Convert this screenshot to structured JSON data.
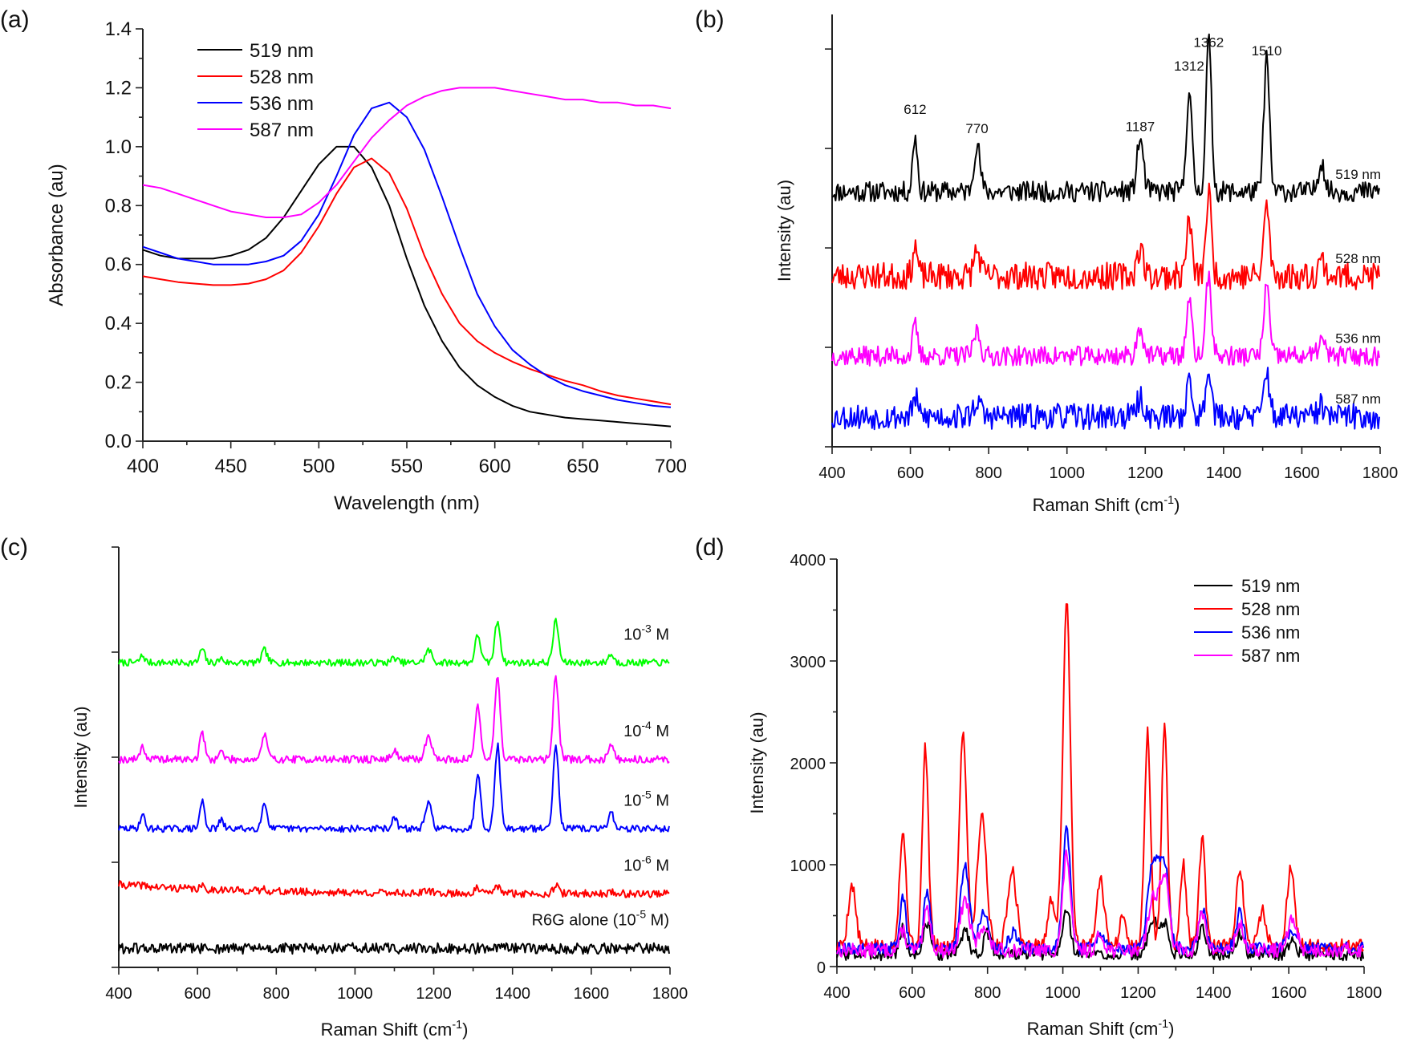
{
  "figure": {
    "panel_labels": [
      "(a)",
      "(b)",
      "(c)",
      "(d)"
    ]
  },
  "chart_data": [
    {
      "panel": "(a)",
      "type": "line",
      "title": "",
      "xlabel": "Wavelength (nm)",
      "ylabel": "Absorbance (au)",
      "xlim": [
        400,
        700
      ],
      "ylim": [
        0.0,
        1.4
      ],
      "xticks": [
        "400",
        "450",
        "500",
        "550",
        "600",
        "650",
        "700"
      ],
      "yticks": [
        "0.0",
        "0.2",
        "0.4",
        "0.6",
        "0.8",
        "1.0",
        "1.2",
        "1.4"
      ],
      "legend": "top-left",
      "x": [
        400,
        410,
        420,
        430,
        440,
        450,
        460,
        470,
        480,
        490,
        500,
        510,
        520,
        530,
        540,
        550,
        560,
        570,
        580,
        590,
        600,
        610,
        620,
        630,
        640,
        650,
        660,
        670,
        680,
        690,
        700
      ],
      "series": [
        {
          "name": "519 nm",
          "color": "#000000",
          "values": [
            0.65,
            0.63,
            0.62,
            0.62,
            0.62,
            0.63,
            0.65,
            0.69,
            0.76,
            0.85,
            0.94,
            1.0,
            1.0,
            0.93,
            0.8,
            0.62,
            0.46,
            0.34,
            0.25,
            0.19,
            0.15,
            0.12,
            0.1,
            0.09,
            0.08,
            0.075,
            0.07,
            0.065,
            0.06,
            0.055,
            0.05
          ]
        },
        {
          "name": "528 nm",
          "color": "#ff0000",
          "values": [
            0.56,
            0.55,
            0.54,
            0.535,
            0.53,
            0.53,
            0.535,
            0.55,
            0.58,
            0.64,
            0.73,
            0.84,
            0.93,
            0.96,
            0.91,
            0.79,
            0.63,
            0.5,
            0.4,
            0.34,
            0.3,
            0.27,
            0.245,
            0.225,
            0.205,
            0.19,
            0.17,
            0.155,
            0.145,
            0.135,
            0.125
          ]
        },
        {
          "name": "536 nm",
          "color": "#0000ff",
          "values": [
            0.66,
            0.64,
            0.62,
            0.61,
            0.6,
            0.6,
            0.6,
            0.61,
            0.63,
            0.68,
            0.77,
            0.9,
            1.04,
            1.13,
            1.15,
            1.1,
            0.99,
            0.83,
            0.66,
            0.5,
            0.39,
            0.31,
            0.26,
            0.22,
            0.19,
            0.17,
            0.155,
            0.14,
            0.13,
            0.12,
            0.115
          ]
        },
        {
          "name": "587 nm",
          "color": "#ff00ff",
          "values": [
            0.87,
            0.86,
            0.84,
            0.82,
            0.8,
            0.78,
            0.77,
            0.76,
            0.76,
            0.77,
            0.81,
            0.87,
            0.95,
            1.03,
            1.09,
            1.14,
            1.17,
            1.19,
            1.2,
            1.2,
            1.2,
            1.19,
            1.18,
            1.17,
            1.16,
            1.16,
            1.15,
            1.15,
            1.14,
            1.14,
            1.13
          ]
        }
      ]
    },
    {
      "panel": "(b)",
      "type": "line",
      "title": "",
      "xlabel": "Raman Shift (cm",
      "xlabel_sup": "-1",
      "xlabel_end": ")",
      "ylabel": "Intensity (au)",
      "xlim": [
        400,
        1800
      ],
      "ylim": [
        0,
        100
      ],
      "xticks": [
        "400",
        "600",
        "800",
        "1000",
        "1200",
        "1400",
        "1600",
        "1800"
      ],
      "show_y_tick_labels": false,
      "y_tick_values": [
        0,
        23,
        46,
        69,
        92,
        115
      ],
      "peaks": [
        {
          "center": 612,
          "height": 1.0,
          "width": 6
        },
        {
          "center": 770,
          "height": 0.85,
          "width": 8
        },
        {
          "center": 1187,
          "height": 0.95,
          "width": 8
        },
        {
          "center": 1312,
          "height": 1.8,
          "width": 7
        },
        {
          "center": 1362,
          "height": 2.7,
          "width": 7
        },
        {
          "center": 1510,
          "height": 2.4,
          "width": 7
        },
        {
          "center": 1650,
          "height": 0.55,
          "width": 8
        }
      ],
      "peak_labels": [
        {
          "x": 612,
          "y": 77.0,
          "text": "612"
        },
        {
          "x": 770,
          "y": 72.5,
          "text": "770"
        },
        {
          "x": 1187,
          "y": 73.0,
          "text": "1187"
        },
        {
          "x": 1312,
          "y": 87.0,
          "text": "1312"
        },
        {
          "x": 1362,
          "y": 92.5,
          "text": "1362"
        },
        {
          "x": 1510,
          "y": 90.5,
          "text": "1510"
        }
      ],
      "series": [
        {
          "name": "519 nm",
          "color": "#000000",
          "baseline": 59,
          "noise": 2.4,
          "peak_scale": 13,
          "seed": 11
        },
        {
          "name": "528 nm",
          "color": "#ff0000",
          "baseline": 39.5,
          "noise": 3.2,
          "peak_scale": 7,
          "seed": 23
        },
        {
          "name": "536 nm",
          "color": "#ff00ff",
          "baseline": 21,
          "noise": 2.3,
          "peak_scale": 7,
          "seed": 37
        },
        {
          "name": "587 nm",
          "color": "#0000ff",
          "baseline": 7,
          "noise": 3.0,
          "peak_scale": 4.5,
          "seed": 53
        }
      ],
      "legend": "inline-right"
    },
    {
      "panel": "(c)",
      "type": "line",
      "title": "",
      "xlabel": "Raman Shift (cm",
      "xlabel_sup": "-1",
      "xlabel_end": ")",
      "ylabel": "Intensity (au)",
      "xlim": [
        400,
        1800
      ],
      "ylim": [
        0,
        100
      ],
      "xticks": [
        "400",
        "600",
        "800",
        "1000",
        "1200",
        "1400",
        "1600",
        "1800"
      ],
      "show_y_tick_labels": false,
      "y_tick_values": [
        0,
        25,
        50,
        75,
        100
      ],
      "peaks": [
        {
          "center": 460,
          "height": 0.5,
          "width": 6
        },
        {
          "center": 612,
          "height": 1.0,
          "width": 6
        },
        {
          "center": 660,
          "height": 0.3,
          "width": 6
        },
        {
          "center": 770,
          "height": 0.9,
          "width": 7
        },
        {
          "center": 1100,
          "height": 0.35,
          "width": 7
        },
        {
          "center": 1187,
          "height": 0.9,
          "width": 8
        },
        {
          "center": 1312,
          "height": 2.0,
          "width": 7
        },
        {
          "center": 1362,
          "height": 3.0,
          "width": 7
        },
        {
          "center": 1510,
          "height": 3.0,
          "width": 7
        },
        {
          "center": 1650,
          "height": 0.6,
          "width": 7
        }
      ],
      "series": [
        {
          "name": "10-3 M",
          "label_base": "10",
          "label_exp": "-3",
          "label_unit": " M",
          "color": "#00ff00",
          "baseline": 72.5,
          "noise": 0.8,
          "peak_scale": 3.3,
          "seed": 7
        },
        {
          "name": "10-4 M",
          "label_base": "10",
          "label_exp": "-4",
          "label_unit": " M",
          "color": "#ff00ff",
          "baseline": 49.5,
          "noise": 0.9,
          "peak_scale": 6.5,
          "seed": 19
        },
        {
          "name": "10-5 M",
          "label_base": "10",
          "label_exp": "-5",
          "label_unit": " M",
          "color": "#0000ff",
          "baseline": 33,
          "noise": 0.8,
          "peak_scale": 6.6,
          "seed": 29
        },
        {
          "name": "10-6 M",
          "label_base": "10",
          "label_exp": "-6",
          "label_unit": " M",
          "color": "#ff0000",
          "baseline": 17.5,
          "noise": 0.9,
          "peak_scale": 0.6,
          "seed": 41
        },
        {
          "name": "R6G alone (10-5 M)",
          "label_base": "R6G alone (10",
          "label_exp": "-5",
          "label_unit": " M)",
          "color": "#000000",
          "baseline": 4.5,
          "noise": 1.3,
          "peak_scale": 0,
          "seed": 61
        }
      ],
      "legend": "inline-right"
    },
    {
      "panel": "(d)",
      "type": "line",
      "title": "",
      "xlabel": "Raman Shift (cm",
      "xlabel_sup": "-1",
      "xlabel_end": ")",
      "ylabel": "Intensity (au)",
      "xlim": [
        400,
        1800
      ],
      "ylim": [
        0,
        4000
      ],
      "xticks": [
        "400",
        "600",
        "800",
        "1000",
        "1200",
        "1400",
        "1600",
        "1800"
      ],
      "yticks": [
        "0",
        "1000",
        "2000",
        "3000",
        "4000"
      ],
      "legend": "top-right",
      "series": [
        {
          "name": "519 nm",
          "color": "#000000",
          "base": 120,
          "noise": 60,
          "seed": 3,
          "peaks": [
            [
              575,
              250,
              8
            ],
            [
              640,
              300,
              10
            ],
            [
              740,
              250,
              10
            ],
            [
              800,
              200,
              10
            ],
            [
              1010,
              450,
              10
            ],
            [
              1240,
              350,
              12
            ],
            [
              1270,
              300,
              10
            ],
            [
              1370,
              250,
              10
            ],
            [
              1470,
              200,
              10
            ],
            [
              1610,
              150,
              10
            ]
          ]
        },
        {
          "name": "528 nm",
          "color": "#ff0000",
          "base": 200,
          "noise": 70,
          "seed": 5,
          "peaks": [
            [
              440,
              600,
              10
            ],
            [
              575,
              1100,
              9
            ],
            [
              635,
              1950,
              8
            ],
            [
              735,
              2100,
              10
            ],
            [
              785,
              1300,
              12
            ],
            [
              865,
              750,
              12
            ],
            [
              970,
              450,
              10
            ],
            [
              1010,
              3400,
              10
            ],
            [
              1100,
              650,
              10
            ],
            [
              1160,
              350,
              8
            ],
            [
              1225,
              2100,
              8
            ],
            [
              1270,
              2150,
              8
            ],
            [
              1320,
              800,
              8
            ],
            [
              1370,
              1050,
              8
            ],
            [
              1470,
              750,
              10
            ],
            [
              1530,
              350,
              10
            ],
            [
              1605,
              750,
              10
            ]
          ]
        },
        {
          "name": "536 nm",
          "color": "#0000ff",
          "base": 180,
          "noise": 60,
          "seed": 9,
          "peaks": [
            [
              575,
              500,
              8
            ],
            [
              640,
              550,
              9
            ],
            [
              740,
              800,
              12
            ],
            [
              790,
              350,
              12
            ],
            [
              870,
              150,
              12
            ],
            [
              1010,
              1200,
              10
            ],
            [
              1100,
              150,
              10
            ],
            [
              1240,
              850,
              14
            ],
            [
              1270,
              800,
              12
            ],
            [
              1370,
              400,
              10
            ],
            [
              1470,
              350,
              10
            ],
            [
              1610,
              150,
              14
            ]
          ]
        },
        {
          "name": "587 nm",
          "color": "#ff00ff",
          "base": 160,
          "noise": 70,
          "seed": 13,
          "peaks": [
            [
              575,
              200,
              8
            ],
            [
              640,
              400,
              9
            ],
            [
              740,
              500,
              12
            ],
            [
              790,
              250,
              12
            ],
            [
              1010,
              950,
              10
            ],
            [
              1100,
              150,
              10
            ],
            [
              1240,
              500,
              14
            ],
            [
              1270,
              700,
              12
            ],
            [
              1370,
              350,
              10
            ],
            [
              1470,
              250,
              10
            ],
            [
              1610,
              300,
              12
            ]
          ]
        }
      ]
    }
  ]
}
